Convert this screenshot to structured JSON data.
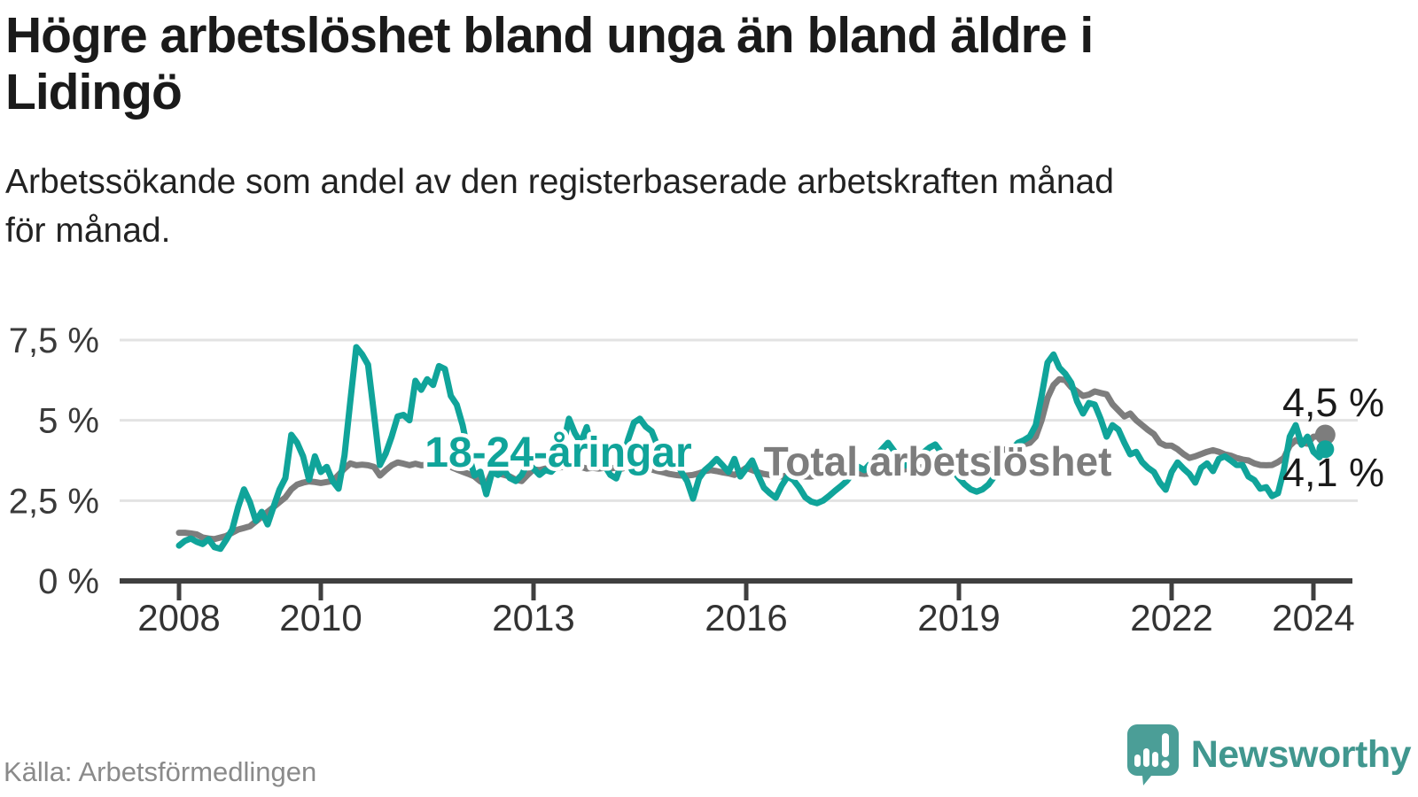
{
  "header": {
    "title_lines": [
      "Högre arbetslöshet bland unga än bland äldre i",
      "Lidingö"
    ],
    "subtitle_lines": [
      "Arbetssökande som andel av den registerbaserade arbetskraften månad",
      "för månad."
    ]
  },
  "chart_data": {
    "type": "line",
    "title": "Högre arbetslöshet bland unga än bland äldre i Lidingö",
    "subtitle": "Arbetssökande som andel av den registerbaserade arbetskraften månad för månad.",
    "source": "Källa: Arbetsförmedlingen",
    "unit": "%",
    "grid": true,
    "ylim": [
      0,
      7.5
    ],
    "x_start_year": 2008,
    "points_per_year": 12,
    "y_ticks": [
      {
        "value": 0,
        "label": "0 %"
      },
      {
        "value": 2.5,
        "label": "2,5 %"
      },
      {
        "value": 5,
        "label": "5 %"
      },
      {
        "value": 7.5,
        "label": "7,5 %"
      }
    ],
    "x_ticks": [
      {
        "year": 2008,
        "label": "2008"
      },
      {
        "year": 2010,
        "label": "2010"
      },
      {
        "year": 2013,
        "label": "2013"
      },
      {
        "year": 2016,
        "label": "2016"
      },
      {
        "year": 2019,
        "label": "2019"
      },
      {
        "year": 2022,
        "label": "2022"
      },
      {
        "year": 2024,
        "label": "2024"
      }
    ],
    "series": [
      {
        "name": "Total arbetslöshet",
        "color": "#7d7d7d",
        "end_label": "4,5 %",
        "values": [
          1.5,
          1.5,
          1.48,
          1.45,
          1.35,
          1.32,
          1.3,
          1.35,
          1.4,
          1.5,
          1.6,
          1.65,
          1.7,
          1.85,
          2.0,
          2.15,
          2.3,
          2.45,
          2.6,
          2.85,
          3.0,
          3.06,
          3.1,
          3.08,
          3.05,
          3.08,
          3.11,
          3.3,
          3.5,
          3.66,
          3.6,
          3.62,
          3.6,
          3.55,
          3.28,
          3.45,
          3.6,
          3.69,
          3.65,
          3.6,
          3.65,
          3.6,
          3.62,
          3.65,
          3.68,
          3.6,
          3.55,
          3.47,
          3.4,
          3.33,
          3.25,
          3.1,
          3.0,
          3.39,
          3.35,
          3.3,
          3.25,
          3.15,
          3.11,
          3.3,
          3.47,
          3.45,
          3.5,
          3.48,
          3.52,
          3.55,
          3.61,
          3.6,
          3.55,
          3.5,
          3.52,
          3.5,
          3.52,
          3.5,
          3.53,
          3.5,
          3.55,
          3.52,
          3.5,
          3.52,
          3.47,
          3.42,
          3.38,
          3.33,
          3.3,
          3.28,
          3.28,
          3.3,
          3.35,
          3.42,
          3.45,
          3.42,
          3.38,
          3.35,
          3.3,
          3.4,
          3.52,
          3.45,
          3.38,
          3.33,
          3.3,
          3.28,
          3.25,
          3.28,
          3.3,
          3.28,
          3.25,
          3.25,
          3.28,
          3.3,
          3.3,
          3.28,
          3.3,
          3.33,
          3.35,
          3.35,
          3.33,
          3.35,
          3.38,
          3.4,
          3.42,
          3.45,
          3.45,
          3.48,
          3.5,
          3.52,
          3.55,
          3.58,
          3.6,
          3.58,
          3.6,
          3.62,
          3.65,
          3.7,
          3.75,
          3.8,
          3.85,
          3.9,
          4.0,
          4.05,
          4.1,
          4.15,
          4.2,
          4.25,
          4.3,
          4.49,
          5.0,
          5.7,
          6.1,
          6.28,
          6.25,
          6.03,
          5.9,
          5.76,
          5.8,
          5.9,
          5.85,
          5.81,
          5.5,
          5.31,
          5.12,
          5.21,
          5.0,
          4.85,
          4.7,
          4.57,
          4.3,
          4.21,
          4.21,
          4.1,
          3.95,
          3.83,
          3.88,
          3.95,
          4.02,
          4.07,
          4.02,
          3.94,
          3.9,
          3.83,
          3.78,
          3.75,
          3.66,
          3.61,
          3.6,
          3.61,
          3.7,
          3.83,
          4.21,
          4.38,
          4.3,
          4.27,
          4.49,
          4.5,
          4.55
        ]
      },
      {
        "name": "18-24-åringar",
        "color": "#10a49a",
        "end_label": "4,1 %",
        "values": [
          1.1,
          1.25,
          1.32,
          1.22,
          1.15,
          1.3,
          1.05,
          1.0,
          1.28,
          1.6,
          2.3,
          2.85,
          2.45,
          1.87,
          2.15,
          1.76,
          2.31,
          2.84,
          3.2,
          4.55,
          4.3,
          3.88,
          3.15,
          3.88,
          3.39,
          3.55,
          3.11,
          2.87,
          3.9,
          5.6,
          7.28,
          7.05,
          6.73,
          5.2,
          3.61,
          3.97,
          4.5,
          5.12,
          5.17,
          5.0,
          6.23,
          5.95,
          6.28,
          6.1,
          6.69,
          6.6,
          5.76,
          5.49,
          4.85,
          3.94,
          3.28,
          3.4,
          2.7,
          3.39,
          3.3,
          3.45,
          3.2,
          3.11,
          3.3,
          3.66,
          3.5,
          3.3,
          3.45,
          3.4,
          3.6,
          4.2,
          5.05,
          4.6,
          4.3,
          4.79,
          4.0,
          3.7,
          3.6,
          3.3,
          3.19,
          3.7,
          4.4,
          4.93,
          5.05,
          4.8,
          4.66,
          4.2,
          3.95,
          3.83,
          3.83,
          3.4,
          3.11,
          2.56,
          3.19,
          3.45,
          3.61,
          3.8,
          3.6,
          3.39,
          3.8,
          3.25,
          3.5,
          3.75,
          3.3,
          2.9,
          2.73,
          2.59,
          2.97,
          3.25,
          3.14,
          2.9,
          2.6,
          2.47,
          2.42,
          2.5,
          2.64,
          2.8,
          2.95,
          3.11,
          3.35,
          3.55,
          3.45,
          3.65,
          3.9,
          4.1,
          4.3,
          4.05,
          3.8,
          3.6,
          3.7,
          3.85,
          4.0,
          4.15,
          4.25,
          4.0,
          3.7,
          3.45,
          3.2,
          3.0,
          2.85,
          2.78,
          2.85,
          3.0,
          3.25,
          3.55,
          3.85,
          4.1,
          4.3,
          4.38,
          4.5,
          4.85,
          5.76,
          6.8,
          7.05,
          6.64,
          6.45,
          6.17,
          5.59,
          5.21,
          5.54,
          5.49,
          5.04,
          4.49,
          4.85,
          4.71,
          4.3,
          3.94,
          4.02,
          3.7,
          3.52,
          3.39,
          3.06,
          2.84,
          3.39,
          3.69,
          3.5,
          3.33,
          3.06,
          3.52,
          3.66,
          3.42,
          3.8,
          3.88,
          3.75,
          3.61,
          3.61,
          3.25,
          3.14,
          2.87,
          2.92,
          2.64,
          2.73,
          3.47,
          4.49,
          4.85,
          4.24,
          4.49,
          4.02,
          3.85,
          4.1
        ]
      }
    ]
  },
  "footer": {
    "source": "Källa: Arbetsförmedlingen",
    "brand": "Newsworthy",
    "logo_icon": "newsworthy-speech-bubble-chart-icon",
    "colors": {
      "line_teal": "#10a49a",
      "line_gray": "#7d7d7d",
      "logo_teal": "#4b9e97",
      "brand_text": "#41978f"
    }
  }
}
